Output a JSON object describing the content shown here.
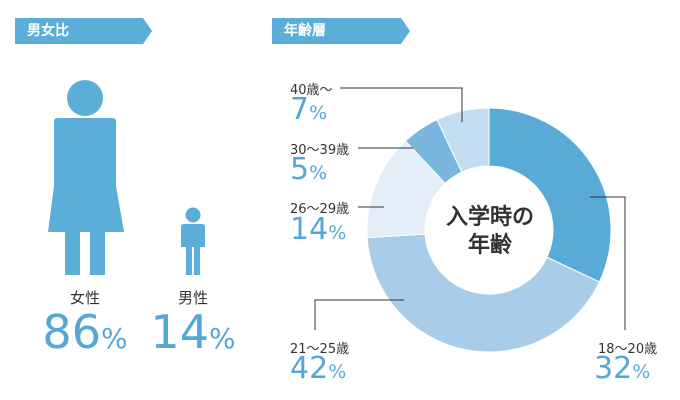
{
  "gender": {
    "title": "男女比",
    "female": {
      "label": "女性",
      "value": "86",
      "unit": "%"
    },
    "male": {
      "label": "男性",
      "value": "14",
      "unit": "%"
    }
  },
  "age": {
    "title": "年齢層",
    "center_label_line1": "入学時の",
    "center_label_line2": "年齢"
  },
  "chart_data": [
    {
      "type": "bar",
      "title": "男女比",
      "categories": [
        "女性",
        "男性"
      ],
      "values": [
        86,
        14
      ],
      "unit": "%"
    },
    {
      "type": "pie",
      "title": "年齢層",
      "center_label": "入学時の年齢",
      "categories": [
        "18〜20歳",
        "21〜25歳",
        "26〜29歳",
        "30〜39歳",
        "40歳〜"
      ],
      "values": [
        32,
        42,
        14,
        5,
        7
      ],
      "unit": "%",
      "colors": [
        "#5aaad8",
        "#a9cde8",
        "#e3eef8",
        "#79b7e0",
        "#c2dcf0"
      ]
    }
  ]
}
